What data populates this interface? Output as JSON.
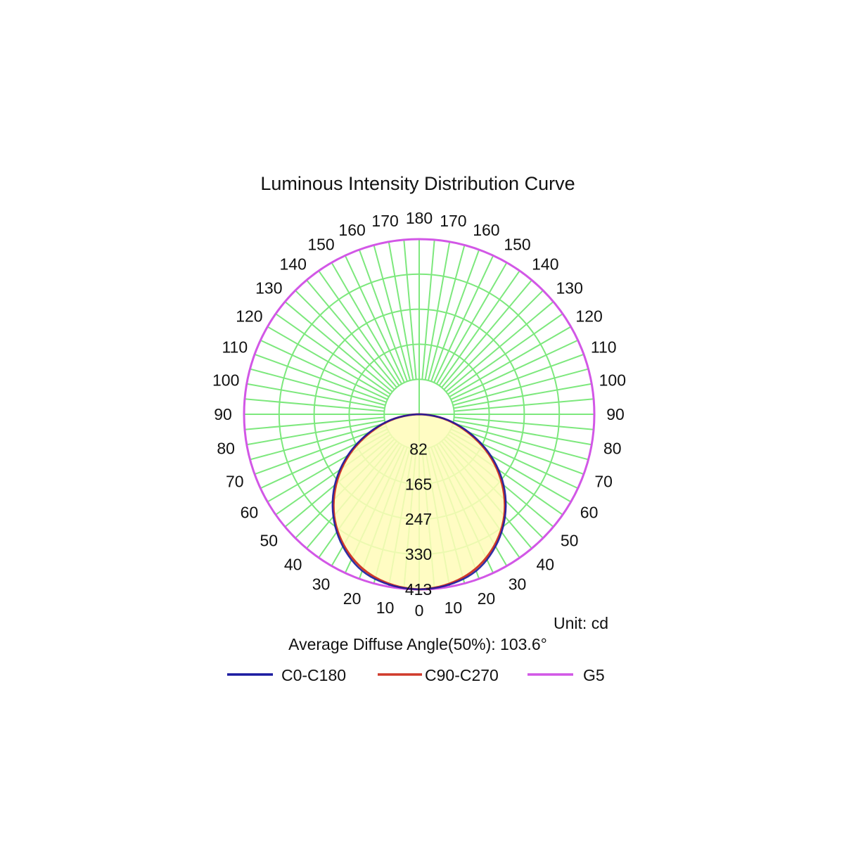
{
  "chart_data": {
    "type": "polar",
    "title": "Luminous Intensity Distribution Curve",
    "unit_label": "Unit: cd",
    "average_angle_label": "Average Diffuse Angle(50%): 103.6°",
    "radial_max": 413,
    "radial_ticks": [
      82,
      165,
      247,
      330,
      413
    ],
    "angle_ticks_left": [
      0,
      10,
      20,
      30,
      40,
      50,
      60,
      70,
      80,
      90,
      100,
      110,
      120,
      130,
      140,
      150,
      160,
      170,
      180
    ],
    "angle_ticks_right": [
      10,
      20,
      30,
      40,
      50,
      60,
      70,
      80,
      90,
      100,
      110,
      120,
      130,
      140,
      150,
      160,
      170
    ],
    "grid": true,
    "colors": {
      "grid": "#7de87d",
      "fill": "#fffcb8",
      "C0-C180": "#1a1aa0",
      "C90-C270": "#d03a2a",
      "G5": "#d257e6"
    },
    "series": [
      {
        "name": "C0-C180",
        "angle_deg": [
          0,
          10,
          20,
          30,
          40,
          50,
          60,
          70,
          80,
          90
        ],
        "values": [
          413,
          408,
          393,
          360,
          315,
          260,
          195,
          125,
          60,
          0
        ]
      },
      {
        "name": "C90-C270",
        "angle_deg": [
          0,
          10,
          20,
          30,
          40,
          50,
          60,
          70,
          80,
          90
        ],
        "values": [
          413,
          406,
          388,
          356,
          312,
          255,
          190,
          120,
          58,
          0
        ]
      },
      {
        "name": "G5",
        "angle_deg": [
          0,
          15,
          30,
          45,
          60,
          75,
          90,
          105,
          120,
          135,
          150,
          165,
          180
        ],
        "values": [
          413,
          413,
          413,
          413,
          413,
          413,
          413,
          413,
          413,
          413,
          413,
          413,
          413
        ]
      }
    ],
    "legend": [
      "C0-C180",
      "C90-C270",
      "G5"
    ]
  }
}
